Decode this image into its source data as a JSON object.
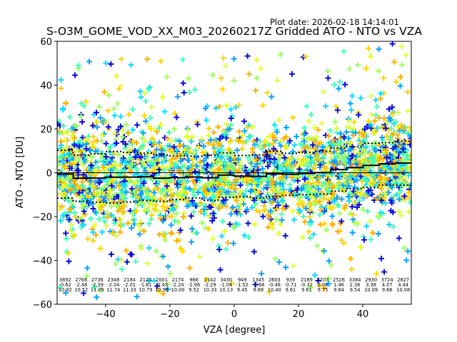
{
  "header": {
    "plot_date": "Plot date: 2026-02-18 14:14:01",
    "title": "S-O3M_GOME_VOD_XX_M03_20260217Z Gridded ATO - NTO vs VZA"
  },
  "chart_data": {
    "type": "scatter",
    "title": "S-O3M_GOME_VOD_XX_M03_20260217Z Gridded ATO - NTO vs VZA",
    "xlabel": "VZA [degree]",
    "ylabel": "ATO - NTO [DU]",
    "xlim": [
      -55.1,
      55.1
    ],
    "ylim": [
      -60,
      60
    ],
    "xticks": [
      -40,
      -20,
      0,
      20,
      40
    ],
    "yticks": [
      -60,
      -40,
      -20,
      0,
      20,
      40,
      60
    ],
    "xtick_labels": [
      "−40",
      "−20",
      "0",
      "20",
      "40"
    ],
    "ytick_labels": [
      "−60",
      "−40",
      "−20",
      "0",
      "20",
      "40",
      "60"
    ],
    "grid": false,
    "marker": "+",
    "colormap": [
      "#0a0ad8",
      "#0aa0ff",
      "#12d8ff",
      "#40ffb8",
      "#9cff60",
      "#e0ff30",
      "#ffd400",
      "#ffb000"
    ],
    "zero_line": 0,
    "bins": {
      "n_bins": 22,
      "counts": [
        3692,
        2766,
        2736,
        2348,
        2184,
        2123,
        2001,
        2174,
        966,
        2142,
        3430,
        949,
        1345,
        2603,
        939,
        2189,
        2203,
        2526,
        3384,
        2930,
        3724,
        2827
      ],
      "count_labels": [
        "3692",
        "2766",
        "2736",
        "2348",
        "2184",
        "2123",
        "2001",
        "2174",
        "966",
        "2142",
        "3430",
        "949",
        "1345",
        "2603",
        "939",
        "2189",
        "2203",
        "2526",
        "3384",
        "2930",
        "3724",
        "2827"
      ],
      "means": [
        -0.62,
        -2.46,
        -2.39,
        -2.04,
        -2.01,
        -1.81,
        -2.43,
        -2.24,
        -1.96,
        -2.29,
        -1.04,
        -1.52,
        -1.68,
        -0.48,
        -0.71,
        -0.32,
        0.08,
        1.46,
        2.36,
        3.38,
        4.07,
        4.44
      ],
      "mean_labels": [
        "-0.62",
        "-2.46",
        "-2.39",
        "-2.04",
        "-2.01",
        "-1.81",
        "-2.43",
        "-2.24",
        "-1.96",
        "-2.29",
        "-1.04",
        "-1.52",
        "-1.68",
        "-0.48",
        "-0.71",
        "-0.32",
        "0.08",
        "1.46",
        "2.36",
        "3.38",
        "4.07",
        "4.44"
      ],
      "stds": [
        10.92,
        10.52,
        11.05,
        11.74,
        11.33,
        10.79,
        10.56,
        10.0,
        9.52,
        10.33,
        10.13,
        9.45,
        9.88,
        10.4,
        9.61,
        9.61,
        9.75,
        9.84,
        9.54,
        10.09,
        9.66,
        10.08
      ],
      "std_labels": [
        "10.92",
        "10.52",
        "11.05",
        "11.74",
        "11.33",
        "10.79",
        "10.56",
        "10.00",
        "9.52",
        "10.33",
        "10.13",
        "9.45",
        "9.88",
        "10.40",
        "9.61",
        "9.61",
        "9.75",
        "9.84",
        "9.54",
        "10.09",
        "9.66",
        "10.08"
      ]
    },
    "series": [
      {
        "name": "mean",
        "style": "solid-step",
        "color": "#000000"
      },
      {
        "name": "mean + std",
        "style": "dotted-step",
        "color": "#000000"
      },
      {
        "name": "mean - std",
        "style": "dotted-step",
        "color": "#000000"
      }
    ]
  }
}
